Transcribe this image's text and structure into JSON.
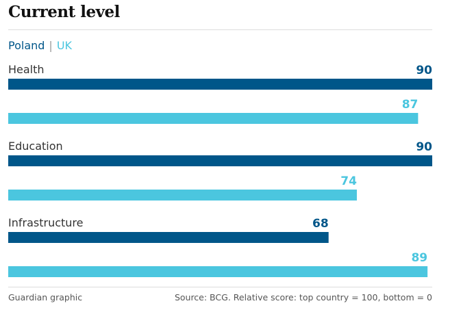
{
  "colors": {
    "poland": "#005689",
    "uk": "#4bc6df"
  },
  "chart_data": {
    "type": "bar",
    "orientation": "horizontal",
    "title": "Current level",
    "categories": [
      "Health",
      "Education",
      "Infrastructure"
    ],
    "series": [
      {
        "name": "Poland",
        "values": [
          90,
          90,
          68
        ]
      },
      {
        "name": "UK",
        "values": [
          87,
          74,
          89
        ]
      }
    ],
    "xlim": [
      0,
      90
    ],
    "legend_position": "top-left",
    "grid": false
  },
  "legend": {
    "poland": "Poland",
    "separator": "|",
    "uk": "UK"
  },
  "footer": {
    "credit": "Guardian graphic",
    "source": "Source: BCG.   Relative score: top country = 100, bottom = 0"
  }
}
